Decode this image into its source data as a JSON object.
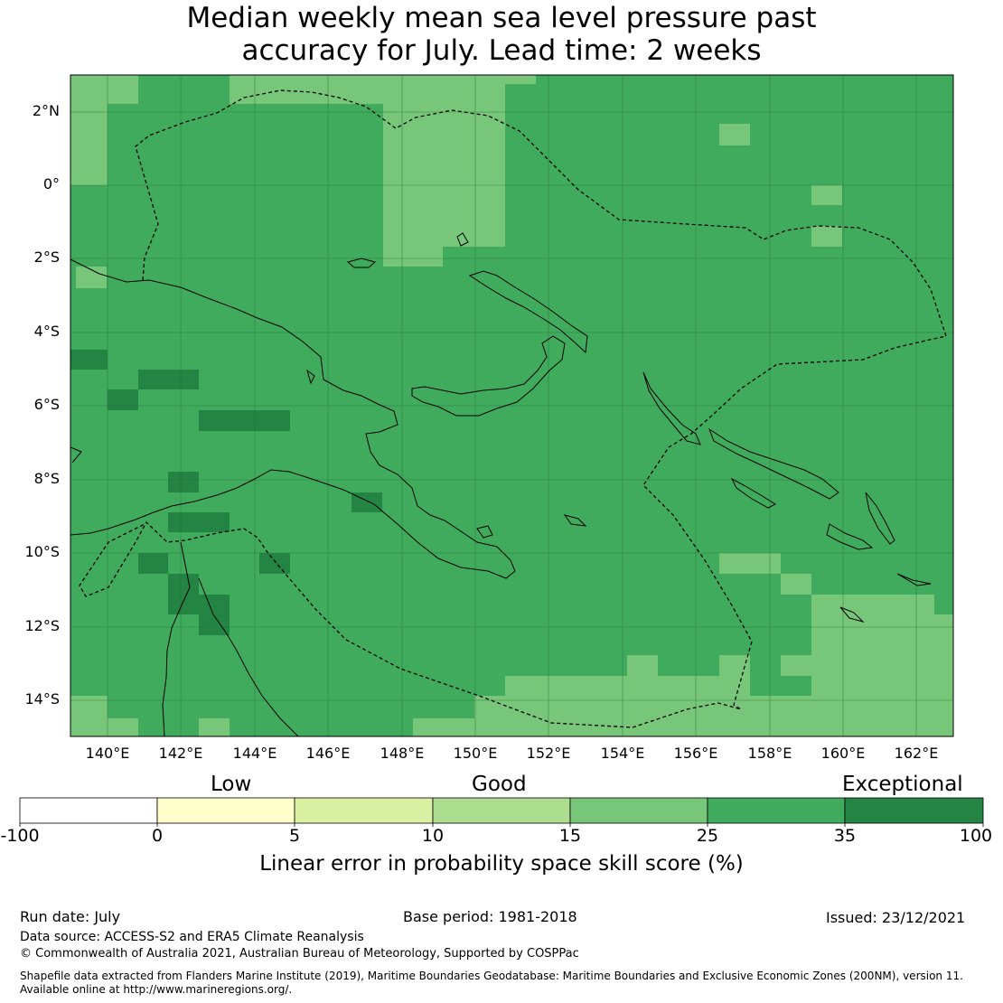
{
  "title_line1": "Median weekly mean sea level pressure past",
  "title_line2": "accuracy for July. Lead time: 2 weeks",
  "map": {
    "lon_ticks": [
      "140°E",
      "142°E",
      "144°E",
      "146°E",
      "148°E",
      "150°E",
      "152°E",
      "154°E",
      "156°E",
      "158°E",
      "160°E",
      "162°E"
    ],
    "lat_ticks": [
      "2°N",
      "0°",
      "2°S",
      "4°S",
      "6°S",
      "8°S",
      "10°S",
      "12°S",
      "14°S"
    ],
    "extent": {
      "lon_min": 139,
      "lon_max": 163,
      "lat_min": -15,
      "lat_max": 3
    },
    "background_color": "#41ab5d",
    "grid": true
  },
  "legend": {
    "categories": [
      "Low",
      "Good",
      "Exceptional"
    ],
    "bins": [
      {
        "from": -100,
        "to": 0,
        "color": "#ffffff"
      },
      {
        "from": 0,
        "to": 5,
        "color": "#ffffcc"
      },
      {
        "from": 5,
        "to": 10,
        "color": "#d9f0a3"
      },
      {
        "from": 10,
        "to": 15,
        "color": "#addd8e"
      },
      {
        "from": 15,
        "to": 25,
        "color": "#78c679"
      },
      {
        "from": 25,
        "to": 35,
        "color": "#41ab5d"
      },
      {
        "from": 35,
        "to": 100,
        "color": "#238443"
      }
    ],
    "tick_labels": [
      "-100",
      "0",
      "5",
      "10",
      "15",
      "25",
      "35",
      "100"
    ],
    "label": "Linear error in probability space skill score (%)"
  },
  "footer": {
    "run_date": "Run date: July",
    "base_period": "Base period: 1981-2018",
    "issued": "Issued: 23/12/2021",
    "data_source": "Data source: ACCESS-S2 and ERA5 Climate Reanalysis",
    "copyright": "© Commonwealth of Australia 2021, Australian Bureau of Meteorology, Supported by COSPPac",
    "shapefile1": "Shapefile data extracted from Flanders Marine Institute (2019), Maritime Boundaries Geodatabase: Maritime Boundaries and Exclusive Economic Zones (200NM), version 11.",
    "shapefile2": "Available online at http://www.marineregions.org/."
  }
}
